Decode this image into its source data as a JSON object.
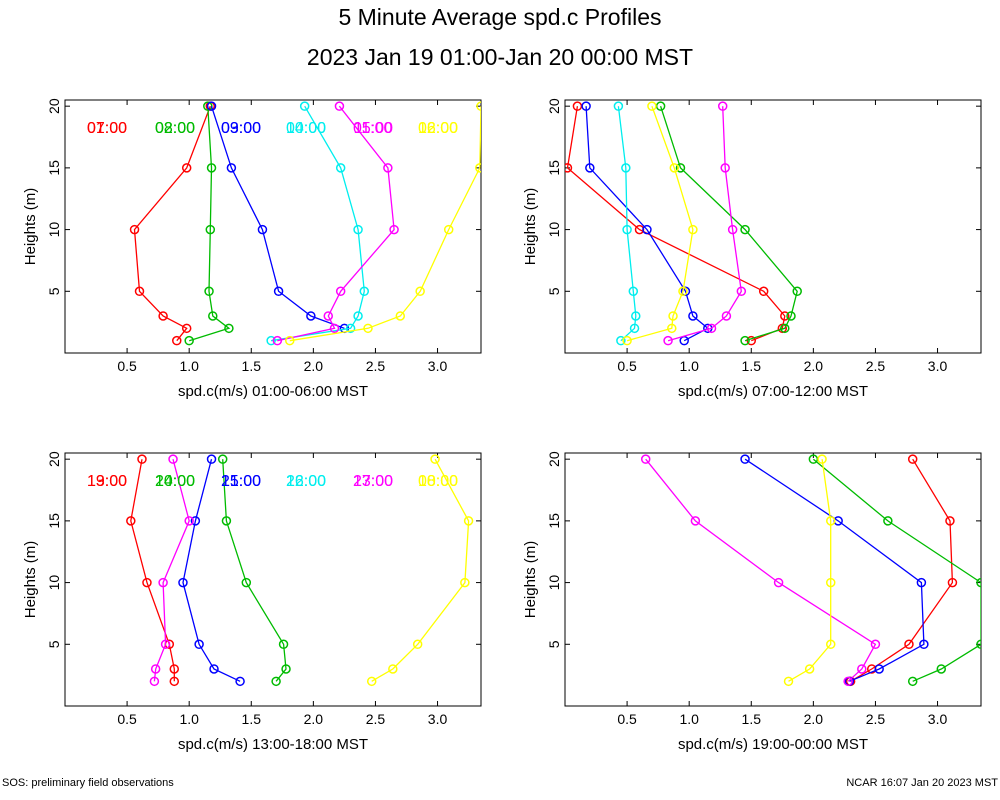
{
  "title": "5 Minute Average spd.c Profiles",
  "subtitle": "2023 Jan 19 01:00-Jan 20 00:00 MST",
  "footer_left": "SOS: preliminary field observations",
  "footer_right": "NCAR 16:07 Jan 20 2023 MST",
  "colors": [
    "#ff0000",
    "#00bb00",
    "#0000ff",
    "#00eeee",
    "#ff00ff",
    "#ffff00"
  ],
  "chart_data": [
    {
      "type": "line",
      "xlabel": "spd.c(m/s) 01:00-06:00 MST",
      "ylabel": "Heights (m)",
      "xlim": [
        0.0,
        3.35
      ],
      "ylim": [
        0,
        20.5
      ],
      "xticks": [
        "0.5",
        "1.0",
        "1.5",
        "2.0",
        "2.5",
        "3.0"
      ],
      "yticks": [
        "5",
        "10",
        "15",
        "20"
      ],
      "series": [
        {
          "name": "01:00",
          "heights": [
            1,
            2,
            3,
            5,
            10,
            15,
            20
          ],
          "values": [
            0.9,
            0.98,
            0.79,
            0.6,
            0.56,
            0.98,
            1.17
          ]
        },
        {
          "name": "02:00",
          "heights": [
            1,
            2,
            3,
            5,
            10,
            15,
            20
          ],
          "values": [
            1.0,
            1.32,
            1.19,
            1.16,
            1.17,
            1.18,
            1.15
          ]
        },
        {
          "name": "03:00",
          "heights": [
            2,
            3,
            5,
            10,
            15,
            20
          ],
          "values": [
            2.25,
            1.98,
            1.72,
            1.59,
            1.34,
            1.18
          ]
        },
        {
          "name": "04:00",
          "heights": [
            1,
            2,
            3,
            5,
            10,
            15,
            20
          ],
          "values": [
            1.66,
            2.3,
            2.36,
            2.41,
            2.36,
            2.22,
            1.93
          ]
        },
        {
          "name": "05:00",
          "heights": [
            1,
            2,
            3,
            5,
            10,
            15,
            20
          ],
          "values": [
            1.71,
            2.17,
            2.12,
            2.22,
            2.65,
            2.6,
            2.21
          ]
        },
        {
          "name": "06:00",
          "heights": [
            1,
            2,
            3,
            5,
            10,
            15,
            20
          ],
          "values": [
            1.81,
            2.44,
            2.7,
            2.86,
            3.09,
            3.34,
            3.35
          ]
        }
      ]
    },
    {
      "type": "line",
      "xlabel": "spd.c(m/s) 07:00-12:00 MST",
      "ylabel": "Heights (m)",
      "xlim": [
        0.0,
        3.35
      ],
      "ylim": [
        0,
        20.5
      ],
      "xticks": [
        "0.5",
        "1.0",
        "1.5",
        "2.0",
        "2.5",
        "3.0"
      ],
      "yticks": [
        "5",
        "10",
        "15",
        "20"
      ],
      "series": [
        {
          "name": "07:00",
          "heights": [
            1,
            2,
            3,
            5,
            10,
            15,
            20
          ],
          "values": [
            1.5,
            1.75,
            1.77,
            1.6,
            0.6,
            0.02,
            0.1
          ]
        },
        {
          "name": "08:00",
          "heights": [
            1,
            2,
            3,
            5,
            10,
            15,
            20
          ],
          "values": [
            1.45,
            1.77,
            1.82,
            1.87,
            1.45,
            0.93,
            0.77
          ]
        },
        {
          "name": "09:00",
          "heights": [
            1,
            2,
            3,
            5,
            10,
            15,
            20
          ],
          "values": [
            0.96,
            1.15,
            1.03,
            0.97,
            0.66,
            0.2,
            0.17
          ]
        },
        {
          "name": "10:00",
          "heights": [
            1,
            2,
            3,
            5,
            10,
            15,
            20
          ],
          "values": [
            0.45,
            0.56,
            0.57,
            0.55,
            0.5,
            0.49,
            0.43
          ]
        },
        {
          "name": "11:00",
          "heights": [
            1,
            2,
            3,
            5,
            10,
            15,
            20
          ],
          "values": [
            0.83,
            1.18,
            1.3,
            1.42,
            1.35,
            1.29,
            1.27
          ]
        },
        {
          "name": "12:00",
          "heights": [
            1,
            2,
            3,
            5,
            10,
            15,
            20
          ],
          "values": [
            0.5,
            0.86,
            0.87,
            0.95,
            1.03,
            0.88,
            0.7
          ]
        }
      ]
    },
    {
      "type": "line",
      "xlabel": "spd.c(m/s) 13:00-18:00 MST",
      "ylabel": "Heights (m)",
      "xlim": [
        0.0,
        3.35
      ],
      "ylim": [
        0,
        20.5
      ],
      "xticks": [
        "0.5",
        "1.0",
        "1.5",
        "2.0",
        "2.5",
        "3.0"
      ],
      "yticks": [
        "5",
        "10",
        "15",
        "20"
      ],
      "series": [
        {
          "name": "13:00",
          "heights": [
            2,
            3,
            5,
            10,
            15,
            20
          ],
          "values": [
            0.88,
            0.88,
            0.84,
            0.66,
            0.53,
            0.62
          ]
        },
        {
          "name": "14:00",
          "heights": [
            2,
            3,
            5,
            10,
            15,
            20
          ],
          "values": [
            1.7,
            1.78,
            1.76,
            1.46,
            1.3,
            1.27
          ]
        },
        {
          "name": "15:00",
          "heights": [
            2,
            3,
            5,
            10,
            15,
            20
          ],
          "values": [
            1.41,
            1.2,
            1.08,
            0.95,
            1.05,
            1.18
          ]
        },
        {
          "name": "16:00",
          "heights": [],
          "values": []
        },
        {
          "name": "17:00",
          "heights": [
            2,
            3,
            5,
            10,
            15,
            20
          ],
          "values": [
            0.72,
            0.73,
            0.81,
            0.79,
            1.0,
            0.87
          ]
        },
        {
          "name": "18:00",
          "heights": [
            2,
            3,
            5,
            10,
            15,
            20
          ],
          "values": [
            2.47,
            2.64,
            2.84,
            3.22,
            3.25,
            2.98
          ]
        }
      ]
    },
    {
      "type": "line",
      "xlabel": "spd.c(m/s) 19:00-00:00 MST",
      "ylabel": "Heights (m)",
      "xlim": [
        0.0,
        3.35
      ],
      "ylim": [
        0,
        20.5
      ],
      "xticks": [
        "0.5",
        "1.0",
        "1.5",
        "2.0",
        "2.5",
        "3.0"
      ],
      "yticks": [
        "5",
        "10",
        "15",
        "20"
      ],
      "series": [
        {
          "name": "19:00",
          "heights": [
            2,
            3,
            5,
            10,
            15,
            20
          ],
          "values": [
            2.3,
            2.47,
            2.77,
            3.12,
            3.1,
            2.8
          ]
        },
        {
          "name": "20:00",
          "heights": [
            2,
            3,
            5,
            10,
            15,
            20
          ],
          "values": [
            2.8,
            3.03,
            3.35,
            3.35,
            2.6,
            2.0
          ]
        },
        {
          "name": "21:00",
          "heights": [
            2,
            3,
            5,
            10,
            15,
            20
          ],
          "values": [
            2.29,
            2.53,
            2.89,
            2.87,
            2.2,
            1.45
          ]
        },
        {
          "name": "22:00",
          "heights": [],
          "values": []
        },
        {
          "name": "23:00",
          "heights": [
            2,
            3,
            5,
            10,
            15,
            20
          ],
          "values": [
            2.28,
            2.39,
            2.5,
            1.72,
            1.05,
            0.65
          ]
        },
        {
          "name": "00:00",
          "heights": [
            2,
            3,
            5,
            10,
            15,
            20
          ],
          "values": [
            1.8,
            1.97,
            2.14,
            2.14,
            2.14,
            2.07
          ]
        }
      ]
    }
  ]
}
